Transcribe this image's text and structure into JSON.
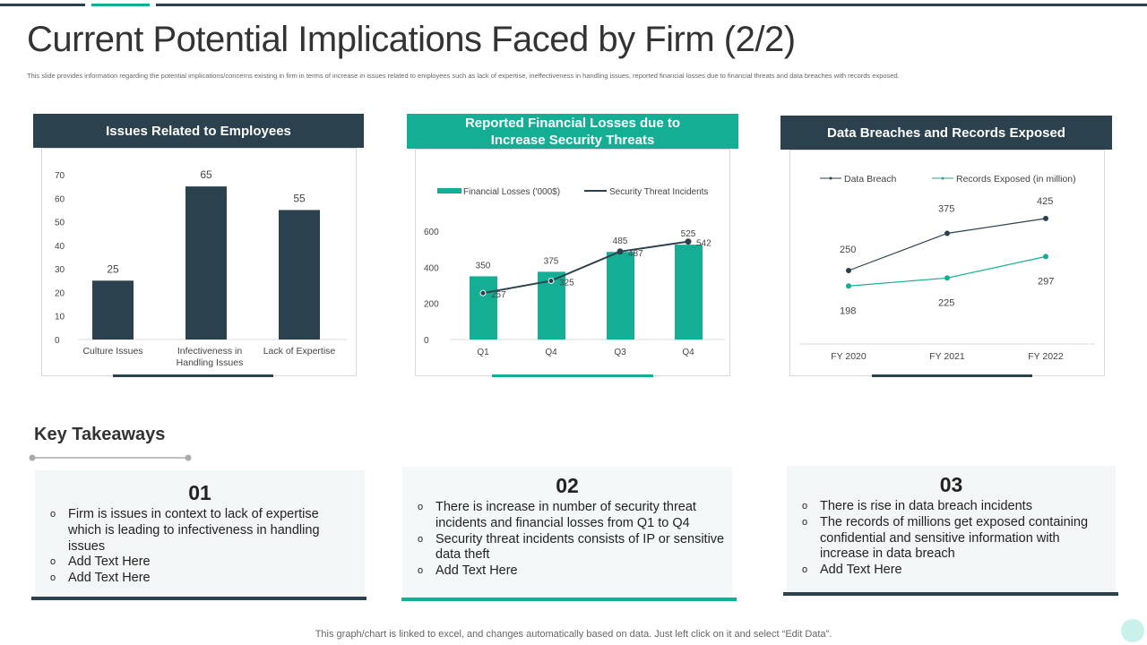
{
  "title": "Current Potential Implications Faced by Firm (2/2)",
  "subtitle": "This slide provides information regarding the potential implications/concerns existing in firm in terms of increase in  issues related to employees such as lack of expertise, ineffectiveness in handling issues, reported financial losses due to financial threats and data breaches with records exposed.",
  "colors": {
    "dark": "#2b414d",
    "teal": "#14ae95"
  },
  "panels": [
    {
      "header": "Issues  Related to Employees"
    },
    {
      "header": "Reported Financial Losses due to Increase Security Threats"
    },
    {
      "header": "Data Breaches and Records Exposed"
    }
  ],
  "chart_data": [
    {
      "type": "bar",
      "categories": [
        "Culture Issues",
        "Infectiveness in Handling Issues",
        "Lack of Expertise"
      ],
      "values": [
        25,
        65,
        55
      ],
      "ylim": [
        0,
        70
      ],
      "yticks": [
        "0",
        "10",
        "20",
        "30",
        "40",
        "50",
        "60",
        "70"
      ],
      "grid": false,
      "legend": "none"
    },
    {
      "type": "bar+line",
      "categories": [
        "Q1",
        "Q4",
        "Q3",
        "Q4"
      ],
      "series": [
        {
          "name": "Financial Losses  ('000$)",
          "type": "bar",
          "values": [
            350,
            375,
            485,
            525
          ]
        },
        {
          "name": "Security Threat Incidents",
          "type": "line",
          "values": [
            257,
            325,
            487,
            542
          ]
        }
      ],
      "ylim": [
        0,
        600
      ],
      "yticks": [
        "0",
        "200",
        "400",
        "600"
      ],
      "grid": false,
      "legend": "top"
    },
    {
      "type": "line",
      "categories": [
        "FY 2020",
        "FY 2021",
        "FY 2022"
      ],
      "series": [
        {
          "name": "Data Breach",
          "values": [
            250,
            375,
            425
          ]
        },
        {
          "name": "Records Exposed (in million)",
          "values": [
            198,
            225,
            297
          ]
        }
      ],
      "grid": false,
      "legend": "top"
    }
  ],
  "takeaways": {
    "title": "Key Takeaways",
    "cards": [
      {
        "num": "01",
        "items": [
          "Firm is issues in context to lack of expertise which is leading to infectiveness in handling issues",
          "Add Text Here",
          "Add Text Here"
        ]
      },
      {
        "num": "02",
        "items": [
          "There is increase in number of security threat incidents and financial losses from Q1 to Q4",
          "Security threat incidents consists of IP or sensitive data theft",
          "Add Text Here"
        ]
      },
      {
        "num": "03",
        "items": [
          "There is rise in data breach incidents",
          "The records of millions get exposed containing confidential and sensitive information with increase in data breach",
          "Add Text Here"
        ]
      }
    ]
  },
  "footer": "This graph/chart is linked to excel,  and changes automatically based on data. Just left click on it and select “Edit Data”."
}
